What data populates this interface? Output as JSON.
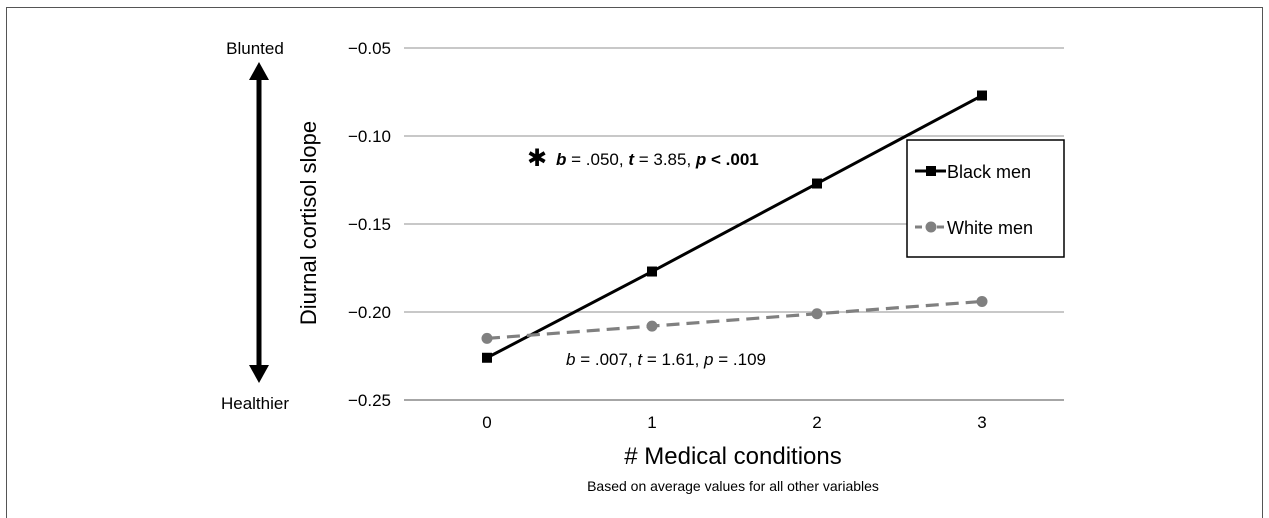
{
  "chart_data": {
    "type": "line",
    "xlabel": "# Medical conditions",
    "xsublabel": "Based on average values for all other variables",
    "ylabel": "Diurnal cortisol slope",
    "categories": [
      "0",
      "1",
      "2",
      "3"
    ],
    "x": [
      0,
      1,
      2,
      3
    ],
    "ylim": [
      -0.25,
      -0.05
    ],
    "yticks": [
      -0.05,
      -0.1,
      -0.15,
      -0.2,
      -0.25
    ],
    "ytick_labels": [
      "−0.05",
      "−0.10",
      "−0.15",
      "−0.20",
      "−0.25"
    ],
    "grid": true,
    "legend_position": "right",
    "series": [
      {
        "name": "Black men",
        "values": [
          -0.226,
          -0.177,
          -0.127,
          -0.077
        ],
        "color": "#000000",
        "marker": "square",
        "line_style": "solid"
      },
      {
        "name": "White men",
        "values": [
          -0.215,
          -0.208,
          -0.201,
          -0.194
        ],
        "color": "#808080",
        "marker": "circle",
        "line_style": "dashed"
      }
    ],
    "annotations": {
      "black": {
        "star": "✱",
        "b_label": "b",
        "b_value": " = .050, ",
        "t_label": "t",
        "t_value": " = 3.85, ",
        "p_label": "p",
        "p_value": " < .001"
      },
      "white": {
        "b_label": "b",
        "b_value": " = .007, ",
        "t_label": "t",
        "t_value": " = 1.61, ",
        "p_label": "p",
        "p_value": " = .109"
      }
    },
    "arrow_labels": {
      "top": "Blunted",
      "bottom": "Healthier"
    }
  }
}
